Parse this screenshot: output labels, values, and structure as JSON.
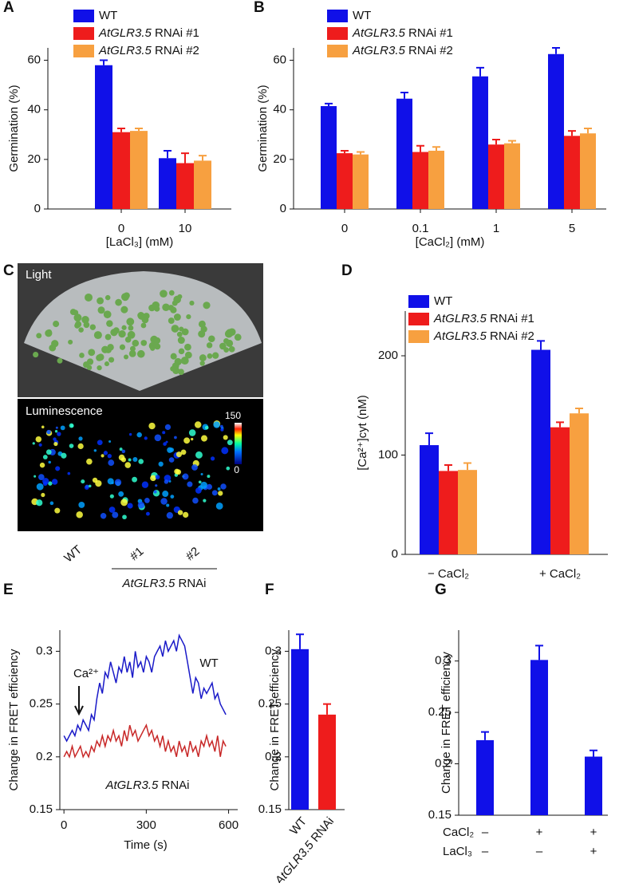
{
  "chart_data": [
    {
      "type": "bar",
      "panel": "A",
      "ylabel": "Germination (%)",
      "xlabel": "[LaCl₃] (mM)",
      "categories": [
        "0",
        "10"
      ],
      "series": [
        {
          "name": "WT",
          "color": "#1010e8",
          "values": [
            58,
            20.5
          ],
          "errors": [
            2,
            3
          ]
        },
        {
          "name": "AtGLR3.5 RNAi #1",
          "color": "#ee1c1c",
          "values": [
            31,
            18.5
          ],
          "errors": [
            1.5,
            4
          ]
        },
        {
          "name": "AtGLR3.5 RNAi #2",
          "color": "#f7a040",
          "values": [
            31.5,
            19.5
          ],
          "errors": [
            1,
            2
          ]
        }
      ],
      "ylim": [
        0,
        65
      ],
      "yticks": [
        0,
        20,
        40,
        60
      ]
    },
    {
      "type": "bar",
      "panel": "B",
      "ylabel": "Germination (%)",
      "xlabel": "[CaCl₂] (mM)",
      "categories": [
        "0",
        "0.1",
        "1",
        "5"
      ],
      "series": [
        {
          "name": "WT",
          "color": "#1010e8",
          "values": [
            41.5,
            44.5,
            53.5,
            62.5
          ],
          "errors": [
            1,
            2.5,
            3.5,
            2.5
          ]
        },
        {
          "name": "AtGLR3.5 RNAi #1",
          "color": "#ee1c1c",
          "values": [
            22.5,
            23,
            26,
            29.5
          ],
          "errors": [
            1,
            2.5,
            2,
            2
          ]
        },
        {
          "name": "AtGLR3.5 RNAi #2",
          "color": "#f7a040",
          "values": [
            22,
            23.5,
            26.5,
            30.5
          ],
          "errors": [
            1,
            1.5,
            1,
            2
          ]
        }
      ],
      "ylim": [
        0,
        65
      ],
      "yticks": [
        0,
        20,
        40,
        60
      ]
    },
    {
      "type": "bar",
      "panel": "D",
      "ylabel": "[Ca²⁺]cyt (nM)",
      "categories": [
        "− CaCl₂",
        "+ CaCl₂"
      ],
      "series": [
        {
          "name": "WT",
          "color": "#1010e8",
          "values": [
            110,
            206
          ],
          "errors": [
            12,
            9
          ]
        },
        {
          "name": "AtGLR3.5 RNAi #1",
          "color": "#ee1c1c",
          "values": [
            84,
            128
          ],
          "errors": [
            6,
            5
          ]
        },
        {
          "name": "AtGLR3.5 RNAi #2",
          "color": "#f7a040",
          "values": [
            85,
            142
          ],
          "errors": [
            7,
            5
          ]
        }
      ],
      "ylim": [
        0,
        245
      ],
      "yticks": [
        0,
        100,
        200
      ]
    },
    {
      "type": "line",
      "panel": "E",
      "ylabel": "Change in FRET efficiency",
      "xlabel": "Time (s)",
      "annotation": "Ca²⁺",
      "x": [
        0,
        10,
        20,
        30,
        40,
        50,
        60,
        70,
        80,
        90,
        100,
        110,
        120,
        130,
        140,
        150,
        160,
        170,
        180,
        190,
        200,
        210,
        220,
        230,
        240,
        250,
        260,
        270,
        280,
        290,
        300,
        310,
        320,
        330,
        340,
        350,
        360,
        370,
        380,
        390,
        400,
        410,
        420,
        430,
        440,
        450,
        460,
        470,
        480,
        490,
        500,
        510,
        520,
        530,
        540,
        550,
        560,
        570,
        580,
        590
      ],
      "series": [
        {
          "name": "WT",
          "color": "#1a1ac8",
          "values": [
            0.22,
            0.215,
            0.22,
            0.225,
            0.22,
            0.23,
            0.225,
            0.235,
            0.23,
            0.225,
            0.24,
            0.235,
            0.255,
            0.27,
            0.26,
            0.28,
            0.275,
            0.29,
            0.28,
            0.27,
            0.285,
            0.28,
            0.295,
            0.28,
            0.29,
            0.275,
            0.3,
            0.285,
            0.29,
            0.28,
            0.295,
            0.29,
            0.28,
            0.295,
            0.3,
            0.305,
            0.295,
            0.31,
            0.3,
            0.305,
            0.31,
            0.3,
            0.315,
            0.31,
            0.305,
            0.29,
            0.275,
            0.26,
            0.275,
            0.27,
            0.255,
            0.265,
            0.26,
            0.265,
            0.27,
            0.255,
            0.26,
            0.25,
            0.245,
            0.24
          ]
        },
        {
          "name": "AtGLR3.5 RNAi",
          "color": "#c82828",
          "values": [
            0.2,
            0.205,
            0.2,
            0.21,
            0.2,
            0.205,
            0.21,
            0.2,
            0.205,
            0.2,
            0.21,
            0.205,
            0.215,
            0.21,
            0.22,
            0.21,
            0.22,
            0.215,
            0.225,
            0.215,
            0.22,
            0.21,
            0.225,
            0.215,
            0.23,
            0.22,
            0.225,
            0.215,
            0.22,
            0.225,
            0.23,
            0.22,
            0.225,
            0.215,
            0.22,
            0.21,
            0.22,
            0.205,
            0.215,
            0.205,
            0.21,
            0.2,
            0.215,
            0.205,
            0.21,
            0.2,
            0.215,
            0.205,
            0.21,
            0.2,
            0.215,
            0.21,
            0.22,
            0.21,
            0.215,
            0.205,
            0.22,
            0.2,
            0.215,
            0.21
          ]
        }
      ],
      "xlim": [
        -15,
        610
      ],
      "xticks": [
        0,
        300,
        600
      ],
      "ylim": [
        0.15,
        0.32
      ],
      "yticks": [
        0.15,
        0.2,
        0.25,
        0.3
      ]
    },
    {
      "type": "bar",
      "panel": "F",
      "ylabel": "Change in FRET efficiency",
      "categories": [
        "WT",
        "AtGLR3.5 RNAi"
      ],
      "values": [
        0.302,
        0.24
      ],
      "errors": [
        0.014,
        0.01
      ],
      "colors": [
        "#1010e8",
        "#ee1c1c"
      ],
      "ylim": [
        0.15,
        0.32
      ],
      "yticks": [
        0.15,
        0.2,
        0.25,
        0.3
      ]
    },
    {
      "type": "bar",
      "panel": "G",
      "ylabel": "Change in FRET efficiency",
      "values": [
        0.223,
        0.301,
        0.207
      ],
      "errors": [
        0.008,
        0.014,
        0.006
      ],
      "color": "#1010e8",
      "conditions": [
        {
          "name": "CaCl₂",
          "values": [
            "–",
            "+",
            "+"
          ]
        },
        {
          "name": "LaCl₃",
          "values": [
            "–",
            "–",
            "+"
          ]
        }
      ],
      "ylim": [
        0.15,
        0.33
      ],
      "yticks": [
        0.15,
        0.2,
        0.25,
        0.3
      ]
    }
  ],
  "panel_c": {
    "panel": "C",
    "top_label": "Light",
    "bottom_label": "Luminescence",
    "scale_max": "150",
    "scale_min": "0",
    "lanes": [
      "WT",
      "#1",
      "#2"
    ],
    "group_label": "AtGLR3.5 RNAi"
  }
}
